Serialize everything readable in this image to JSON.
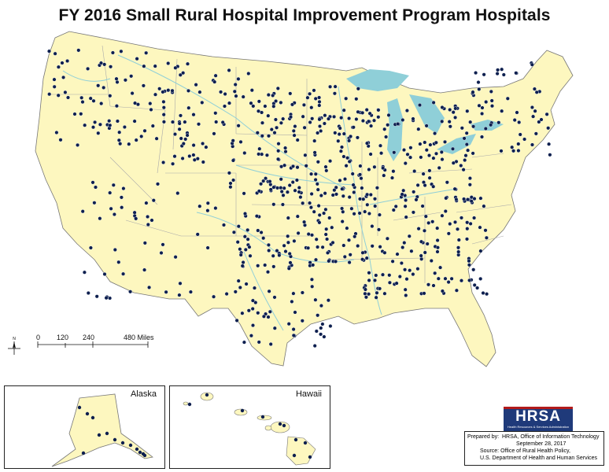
{
  "title": "FY 2016 Small Rural Hospital Improvement Program Hospitals",
  "colors": {
    "land": "#fdf7bf",
    "water": "#8fcfd8",
    "border": "#9a9a9a",
    "dot": "#0d1f4f",
    "dot_edge": "#ffffff"
  },
  "scale_bar": {
    "ticks": [
      "0",
      "120",
      "240",
      "480 Miles"
    ]
  },
  "north_arrow": {
    "label": "N"
  },
  "insets": {
    "alaska": {
      "label": "Alaska"
    },
    "hawaii": {
      "label": "Hawaii"
    }
  },
  "logo": {
    "text": "HRSA",
    "subtext": "Health Resources & Services Administration"
  },
  "credit": {
    "prepared_by_label": "Prepared by:",
    "prepared_by": "HRSA, Office of Information Technology",
    "date": "September 28, 2017",
    "source_label": "Source:",
    "source": "Office of Rural Health Policy,",
    "source2": "U.S. Department of Health and Human Services"
  },
  "icons": [
    "north-arrow-icon",
    "hospital-dot-icon"
  ]
}
